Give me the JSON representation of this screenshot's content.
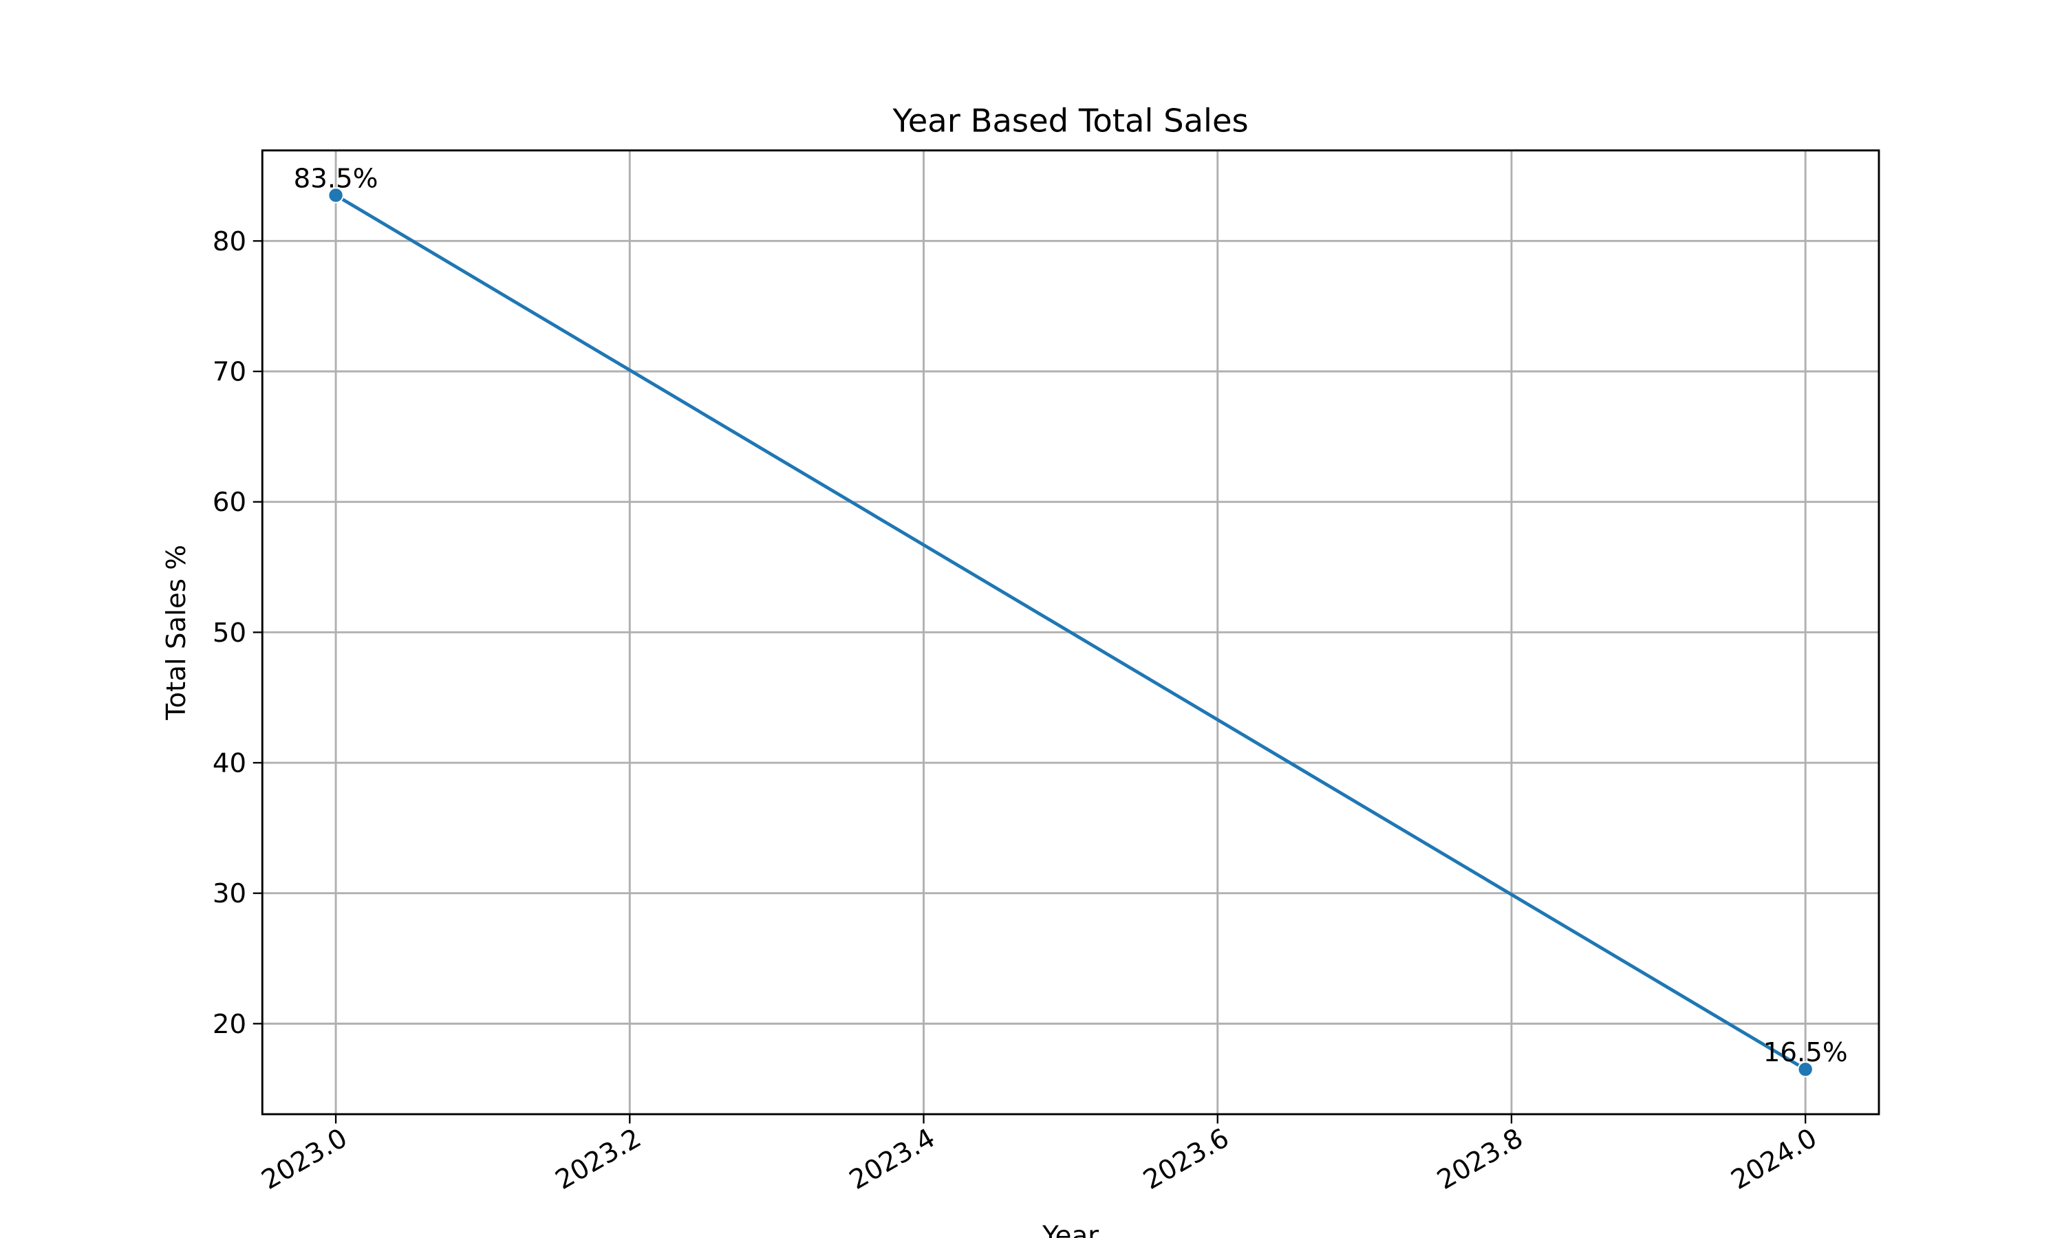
{
  "chart_data": {
    "type": "line",
    "title": "Year Based Total Sales",
    "x_label": "Year",
    "y_label": "Total Sales %",
    "x": [
      2023,
      2024
    ],
    "series": [
      {
        "name": "Total Sales",
        "color": "#1f77b4",
        "values": [
          83.5,
          16.5
        ],
        "value_labels": [
          "83.5%",
          "16.5%"
        ]
      }
    ],
    "xlim": [
      2022.95,
      2024.05
    ],
    "xticks": [
      {
        "value": 2023,
        "label": "2023.0"
      },
      {
        "value": 2023.2,
        "label": "2023.2"
      },
      {
        "value": 2023.4,
        "label": "2023.4"
      },
      {
        "value": 2023.6,
        "label": "2023.6"
      },
      {
        "value": 2023.8,
        "label": "2023.8"
      },
      {
        "value": 2024,
        "label": "2024.0"
      }
    ],
    "ylim": [
      13.06,
      86.94
    ],
    "yticks": [
      20,
      30,
      40,
      50,
      60,
      70,
      80
    ],
    "grid": true
  }
}
